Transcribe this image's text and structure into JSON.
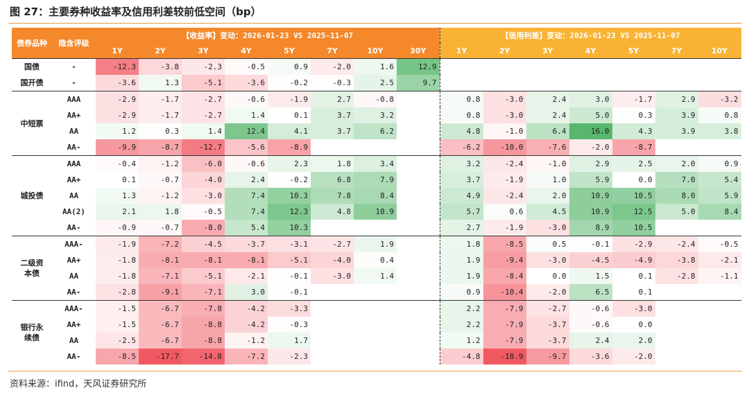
{
  "title": "图 27：主要券种收益率及信用利差较前低空间（bp）",
  "source": "资料来源：ifind，天风证券研究所",
  "colors": {
    "header_left": "#f4882a",
    "header_right": "#f9b233",
    "positive": "#4fb364",
    "negative": "#f0505a",
    "rule": "#e39a3a"
  },
  "header": {
    "col_category": "债券品种",
    "col_rating": "隐含评级",
    "yield_title": "【收益率】变动：2026-01-23 VS 2025-11-07",
    "spread_title": "【信用利差】变动：2026-01-23 VS 2025-11-07",
    "yield_tenors": [
      "1Y",
      "2Y",
      "3Y",
      "4Y",
      "5Y",
      "7Y",
      "10Y",
      "30Y"
    ],
    "spread_tenors": [
      "1Y",
      "2Y",
      "3Y",
      "4Y",
      "5Y",
      "7Y",
      "10Y"
    ]
  },
  "groups": [
    {
      "name": "",
      "rows": [
        {
          "category": "国债",
          "rating": "-",
          "yield": [
            -12.3,
            -3.8,
            -2.3,
            -0.5,
            0.9,
            -2.0,
            1.6,
            12.9
          ],
          "spread": [
            null,
            null,
            null,
            null,
            null,
            null,
            null
          ]
        },
        {
          "category": "国开债",
          "rating": "-",
          "yield": [
            -3.6,
            1.3,
            -5.1,
            -3.6,
            -0.2,
            -0.3,
            2.5,
            9.7
          ],
          "spread": [
            null,
            null,
            null,
            null,
            null,
            null,
            null
          ]
        }
      ]
    },
    {
      "name": "中短票",
      "rows": [
        {
          "rating": "AAA",
          "yield": [
            -2.9,
            -1.7,
            -2.7,
            -0.6,
            -1.9,
            2.7,
            -0.8,
            null
          ],
          "spread": [
            0.8,
            -3.0,
            2.4,
            3.0,
            -1.7,
            2.9,
            -3.2
          ]
        },
        {
          "rating": "AA+",
          "yield": [
            -2.9,
            -1.7,
            -2.7,
            1.4,
            0.1,
            3.7,
            3.2,
            null
          ],
          "spread": [
            0.8,
            -3.0,
            2.4,
            5.0,
            0.3,
            3.9,
            0.8
          ]
        },
        {
          "rating": "AA",
          "yield": [
            1.2,
            0.3,
            1.4,
            12.4,
            4.1,
            3.7,
            6.2,
            null
          ],
          "spread": [
            4.8,
            -1.0,
            6.4,
            16.0,
            4.3,
            3.9,
            3.8
          ]
        },
        {
          "rating": "AA-",
          "yield": [
            -9.9,
            -8.7,
            -12.7,
            -5.6,
            -8.9,
            null,
            null,
            null
          ],
          "spread": [
            -6.2,
            -10.0,
            -7.6,
            -2.0,
            -8.7,
            null,
            null
          ]
        }
      ]
    },
    {
      "name": "城投债",
      "rows": [
        {
          "rating": "AAA",
          "yield": [
            -0.4,
            -1.2,
            -6.0,
            -0.6,
            2.3,
            1.8,
            3.4,
            null
          ],
          "spread": [
            3.2,
            -2.4,
            -1.0,
            2.9,
            2.5,
            2.0,
            0.9
          ]
        },
        {
          "rating": "AA+",
          "yield": [
            0.1,
            -0.7,
            -4.0,
            2.4,
            -0.2,
            6.8,
            7.9,
            null
          ],
          "spread": [
            3.7,
            -1.9,
            1.0,
            5.9,
            0.0,
            7.0,
            5.4
          ]
        },
        {
          "rating": "AA",
          "yield": [
            1.3,
            -1.2,
            -3.0,
            7.4,
            10.3,
            7.8,
            8.4,
            null
          ],
          "spread": [
            4.9,
            -2.4,
            2.0,
            10.9,
            10.5,
            8.0,
            5.9
          ]
        },
        {
          "rating": "AA(2)",
          "yield": [
            2.1,
            1.8,
            -0.5,
            7.4,
            12.3,
            4.8,
            10.9,
            null
          ],
          "spread": [
            5.7,
            0.6,
            4.5,
            10.9,
            12.5,
            5.0,
            8.4
          ]
        },
        {
          "rating": "AA-",
          "yield": [
            -0.9,
            -0.7,
            -8.0,
            5.4,
            10.3,
            null,
            null,
            null
          ],
          "spread": [
            2.7,
            -1.9,
            -3.0,
            8.9,
            10.5,
            null,
            null
          ]
        }
      ]
    },
    {
      "name": "二级资本债",
      "rows": [
        {
          "rating": "AAA-",
          "yield": [
            -1.9,
            -7.2,
            -4.5,
            -3.7,
            -3.1,
            -2.7,
            1.9,
            null
          ],
          "spread": [
            1.8,
            -8.5,
            0.5,
            -0.1,
            -2.9,
            -2.4,
            -0.5
          ]
        },
        {
          "rating": "AA+",
          "yield": [
            -1.8,
            -8.1,
            -8.1,
            -8.1,
            -5.1,
            -4.0,
            0.4,
            null
          ],
          "spread": [
            1.9,
            -9.4,
            -3.0,
            -4.5,
            -4.9,
            -3.8,
            -2.1
          ]
        },
        {
          "rating": "AA",
          "yield": [
            -1.8,
            -7.1,
            -5.1,
            -2.1,
            -0.1,
            -3.0,
            1.4,
            null
          ],
          "spread": [
            1.9,
            -8.4,
            0.0,
            1.5,
            0.1,
            -2.8,
            -1.1
          ]
        },
        {
          "rating": "AA-",
          "yield": [
            -2.8,
            -9.1,
            -7.1,
            3.0,
            -0.1,
            null,
            null,
            null
          ],
          "spread": [
            0.9,
            -10.4,
            -2.0,
            6.5,
            0.1,
            null,
            null
          ]
        }
      ]
    },
    {
      "name": "银行永续债",
      "rows": [
        {
          "rating": "AAA-",
          "yield": [
            -1.5,
            -6.7,
            -7.8,
            -4.2,
            -3.3,
            null,
            null,
            null
          ],
          "spread": [
            2.2,
            -7.9,
            -2.7,
            -0.6,
            -3.0,
            null,
            null
          ]
        },
        {
          "rating": "AA+",
          "yield": [
            -1.5,
            -6.7,
            -8.8,
            -4.2,
            -0.3,
            null,
            null,
            null
          ],
          "spread": [
            2.2,
            -7.9,
            -3.7,
            -0.6,
            0.0,
            null,
            null
          ]
        },
        {
          "rating": "AA",
          "yield": [
            -2.5,
            -6.7,
            -8.8,
            -1.2,
            1.7,
            null,
            null,
            null
          ],
          "spread": [
            1.2,
            -7.9,
            -3.7,
            2.4,
            2.0,
            null,
            null
          ]
        },
        {
          "rating": "AA-",
          "yield": [
            -8.5,
            -17.7,
            -14.8,
            -7.2,
            -2.3,
            null,
            null,
            null
          ],
          "spread": [
            -4.8,
            -18.9,
            -9.7,
            -3.6,
            -2.0,
            null,
            null
          ]
        }
      ]
    }
  ]
}
